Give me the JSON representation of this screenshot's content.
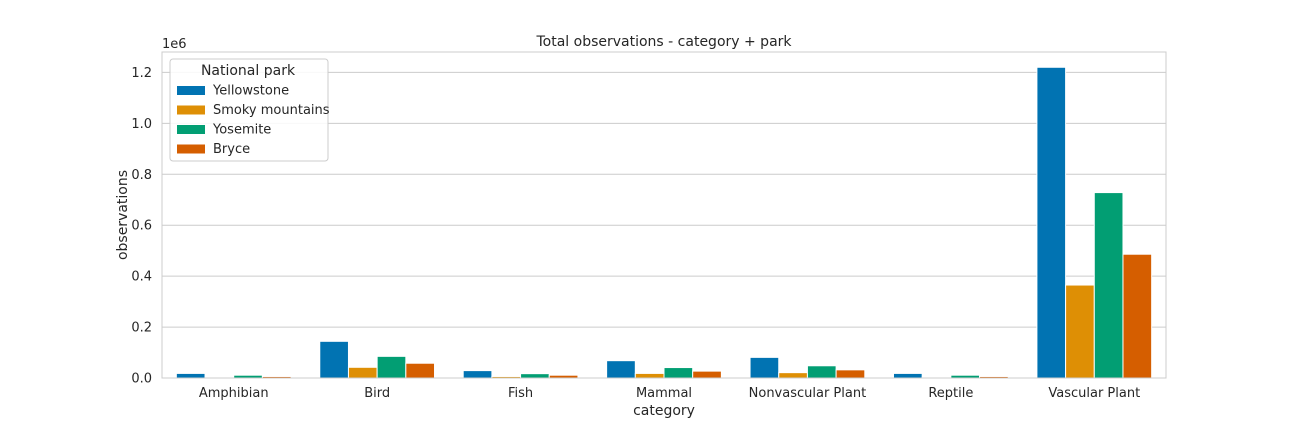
{
  "chart_data": {
    "type": "bar",
    "title": "Total observations - category + park",
    "xlabel": "category",
    "ylabel": "observations",
    "y_offset_text": "1e6",
    "ylim": [
      0,
      1.28
    ],
    "yticks": [
      "0.0",
      "0.2",
      "0.4",
      "0.6",
      "0.8",
      "1.0",
      "1.2"
    ],
    "grid": true,
    "legend_title": "National park",
    "legend_position": "top-left",
    "categories": [
      "Amphibian",
      "Bird",
      "Fish",
      "Mammal",
      "Nonvascular Plant",
      "Reptile",
      "Vascular Plant"
    ],
    "series": [
      {
        "name": "Yellowstone",
        "color": "#0173b2",
        "values": [
          0.018,
          0.144,
          0.029,
          0.068,
          0.081,
          0.018,
          1.22
        ]
      },
      {
        "name": "Smoky mountains",
        "color": "#de8f05",
        "values": [
          0.003,
          0.042,
          0.006,
          0.018,
          0.021,
          0.003,
          0.365
        ]
      },
      {
        "name": "Yosemite",
        "color": "#029e73",
        "values": [
          0.011,
          0.085,
          0.017,
          0.041,
          0.048,
          0.011,
          0.728
        ]
      },
      {
        "name": "Bryce",
        "color": "#d55e00",
        "values": [
          0.006,
          0.058,
          0.011,
          0.027,
          0.032,
          0.006,
          0.486
        ]
      }
    ]
  }
}
